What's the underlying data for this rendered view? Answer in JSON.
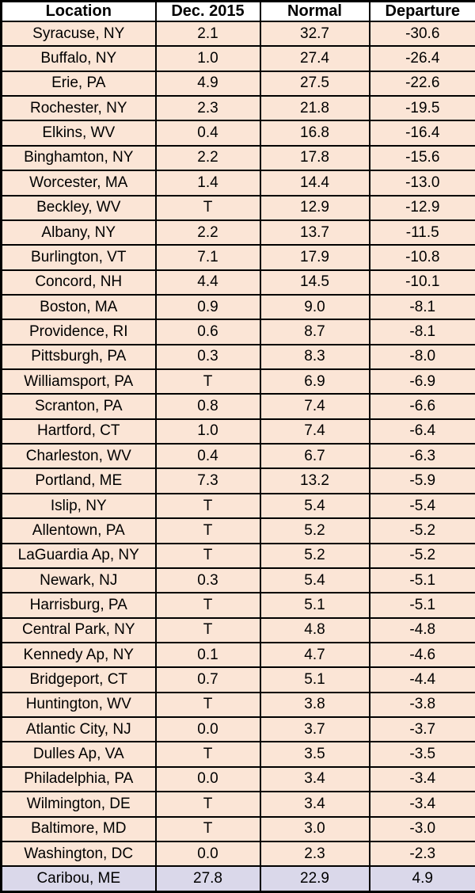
{
  "colors": {
    "row_background": "#fbe5d6",
    "highlight_row_background": "#dad8ea",
    "header_background": "#ffffff",
    "border": "#000000",
    "text": "#000000"
  },
  "chart_data": {
    "type": "table",
    "title": "",
    "columns": [
      "Location",
      "Dec. 2015",
      "Normal",
      "Departure"
    ],
    "highlighted_rows": [
      34
    ],
    "rows": [
      [
        "Syracuse, NY",
        "2.1",
        "32.7",
        "-30.6"
      ],
      [
        "Buffalo, NY",
        "1.0",
        "27.4",
        "-26.4"
      ],
      [
        "Erie, PA",
        "4.9",
        "27.5",
        "-22.6"
      ],
      [
        "Rochester, NY",
        "2.3",
        "21.8",
        "-19.5"
      ],
      [
        "Elkins, WV",
        "0.4",
        "16.8",
        "-16.4"
      ],
      [
        "Binghamton, NY",
        "2.2",
        "17.8",
        "-15.6"
      ],
      [
        "Worcester, MA",
        "1.4",
        "14.4",
        "-13.0"
      ],
      [
        "Beckley, WV",
        "T",
        "12.9",
        "-12.9"
      ],
      [
        "Albany, NY",
        "2.2",
        "13.7",
        "-11.5"
      ],
      [
        "Burlington, VT",
        "7.1",
        "17.9",
        "-10.8"
      ],
      [
        "Concord, NH",
        "4.4",
        "14.5",
        "-10.1"
      ],
      [
        "Boston, MA",
        "0.9",
        "9.0",
        "-8.1"
      ],
      [
        "Providence, RI",
        "0.6",
        "8.7",
        "-8.1"
      ],
      [
        "Pittsburgh, PA",
        "0.3",
        "8.3",
        "-8.0"
      ],
      [
        "Williamsport, PA",
        "T",
        "6.9",
        "-6.9"
      ],
      [
        "Scranton, PA",
        "0.8",
        "7.4",
        "-6.6"
      ],
      [
        "Hartford, CT",
        "1.0",
        "7.4",
        "-6.4"
      ],
      [
        "Charleston, WV",
        "0.4",
        "6.7",
        "-6.3"
      ],
      [
        "Portland, ME",
        "7.3",
        "13.2",
        "-5.9"
      ],
      [
        "Islip, NY",
        "T",
        "5.4",
        "-5.4"
      ],
      [
        "Allentown, PA",
        "T",
        "5.2",
        "-5.2"
      ],
      [
        "LaGuardia Ap, NY",
        "T",
        "5.2",
        "-5.2"
      ],
      [
        "Newark, NJ",
        "0.3",
        "5.4",
        "-5.1"
      ],
      [
        "Harrisburg, PA",
        "T",
        "5.1",
        "-5.1"
      ],
      [
        "Central Park, NY",
        "T",
        "4.8",
        "-4.8"
      ],
      [
        "Kennedy Ap, NY",
        "0.1",
        "4.7",
        "-4.6"
      ],
      [
        "Bridgeport, CT",
        "0.7",
        "5.1",
        "-4.4"
      ],
      [
        "Huntington, WV",
        "T",
        "3.8",
        "-3.8"
      ],
      [
        "Atlantic City, NJ",
        "0.0",
        "3.7",
        "-3.7"
      ],
      [
        "Dulles Ap, VA",
        "T",
        "3.5",
        "-3.5"
      ],
      [
        "Philadelphia, PA",
        "0.0",
        "3.4",
        "-3.4"
      ],
      [
        "Wilmington, DE",
        "T",
        "3.4",
        "-3.4"
      ],
      [
        "Baltimore, MD",
        "T",
        "3.0",
        "-3.0"
      ],
      [
        "Washington, DC",
        "0.0",
        "2.3",
        "-2.3"
      ],
      [
        "Caribou, ME",
        "27.8",
        "22.9",
        "4.9"
      ]
    ]
  }
}
